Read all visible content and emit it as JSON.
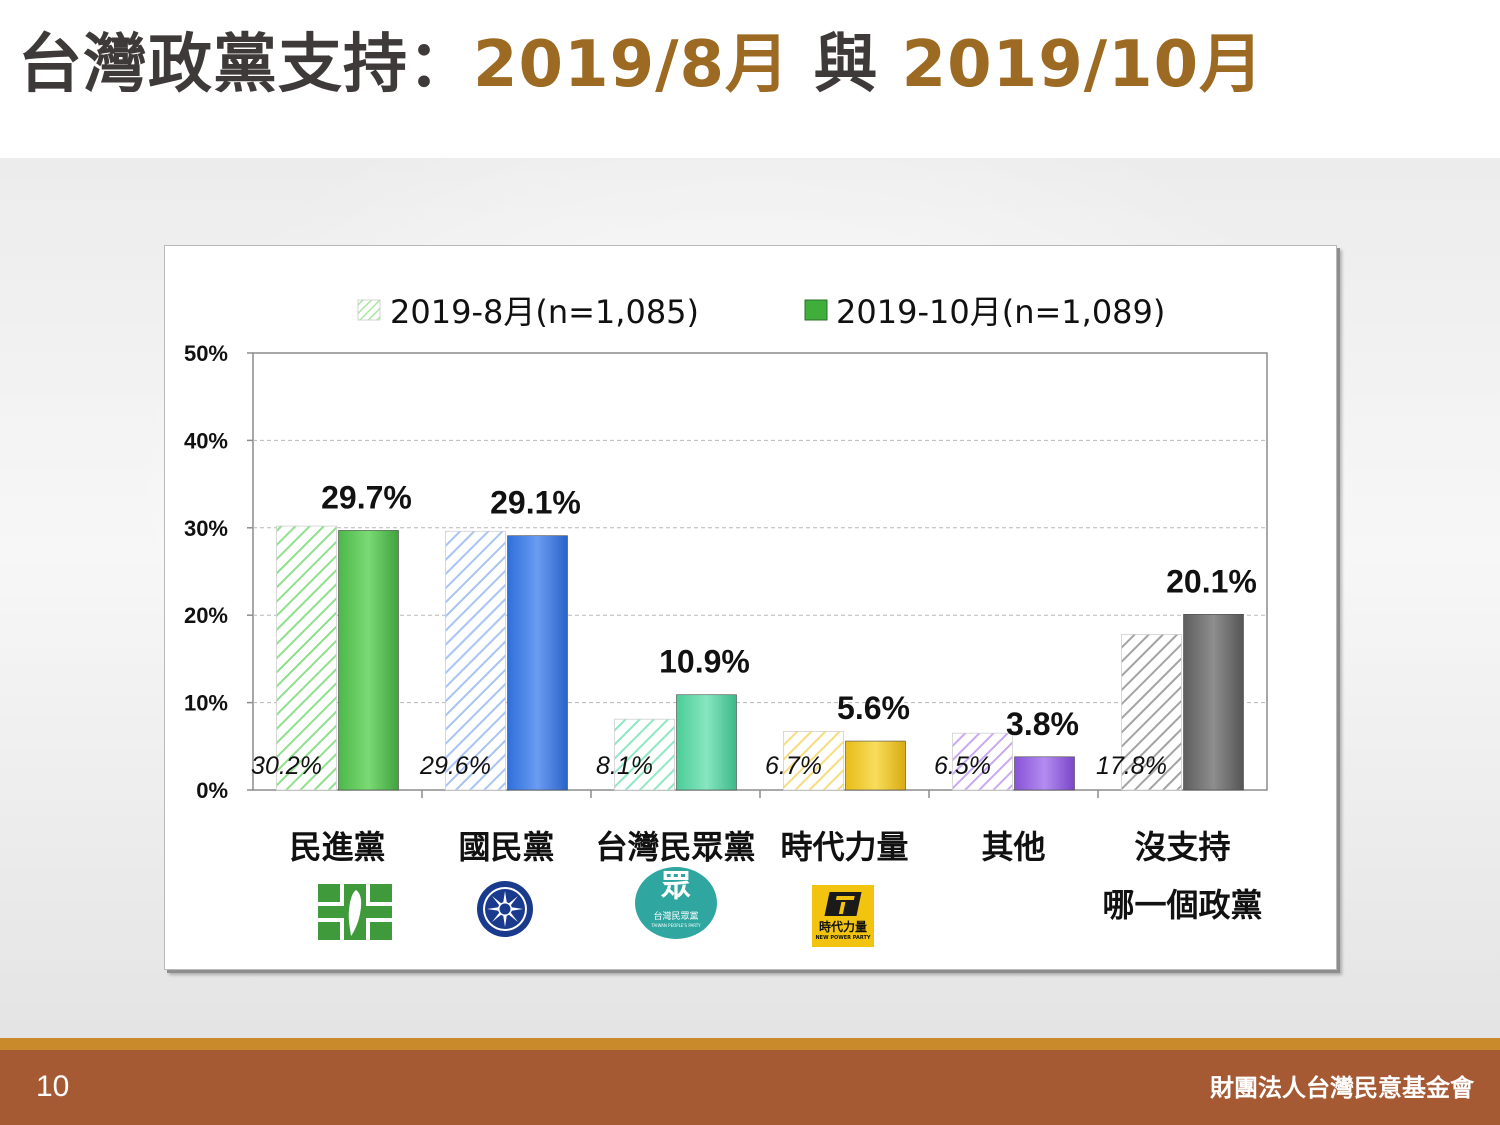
{
  "slide": {
    "title_main": "台灣政黨支持：",
    "title_accent_1": "2019/8月",
    "title_connector": " 與 ",
    "title_accent_2": "2019/10月",
    "page_number": "10",
    "organization": "財團法人台灣民意基金會"
  },
  "logos": {
    "tpp_text": "台灣民眾黨",
    "tpp_sub": "TAIWAN PEOPLE'S PARTY",
    "tpp_glyph": "眾",
    "npp_text": "時代力量",
    "npp_sub": "NEW POWER PARTY"
  },
  "chart_data": {
    "type": "bar",
    "title": "",
    "xlabel": "",
    "ylabel": "",
    "ylim": [
      0,
      50
    ],
    "yticks": [
      "0%",
      "10%",
      "20%",
      "30%",
      "40%",
      "50%"
    ],
    "grid": true,
    "legend_position": "top",
    "categories": [
      "民進黨",
      "國民黨",
      "台灣民眾黨",
      "時代力量",
      "其他",
      "沒支持\n哪一個政黨"
    ],
    "series": [
      {
        "name": "2019-8月(n=1,085)",
        "values": [
          30.2,
          29.6,
          8.1,
          6.7,
          6.5,
          17.8
        ],
        "labels": [
          "30.2%",
          "29.6%",
          "8.1%",
          "6.7%",
          "6.5%",
          "17.8%"
        ]
      },
      {
        "name": "2019-10月(n=1,089)",
        "values": [
          29.7,
          29.1,
          10.9,
          5.6,
          3.8,
          20.1
        ],
        "labels": [
          "29.7%",
          "29.1%",
          "10.9%",
          "5.6%",
          "3.8%",
          "20.1%"
        ]
      }
    ],
    "colors": {
      "dpp": "#5cc85a",
      "kmt": "#3f7fe8",
      "tpp": "#5fd8a6",
      "npp": "#f2c928",
      "other": "#9a68e0",
      "none": "#6f6f6f",
      "legend_aug": "#a8e8a0",
      "legend_oct": "#3fae3a"
    }
  }
}
